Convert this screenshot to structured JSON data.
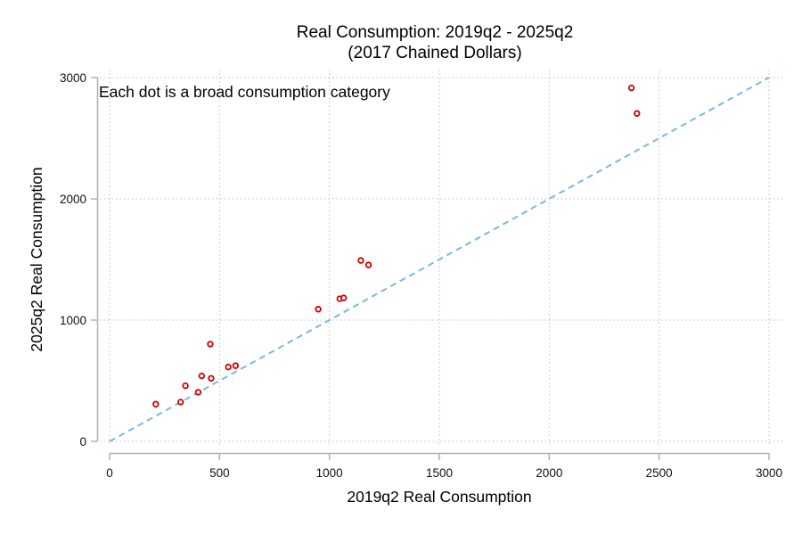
{
  "chart_data": {
    "type": "scatter",
    "title": "Real Consumption: 2019q2 - 2025q2",
    "subtitle": "(2017 Chained Dollars)",
    "xlabel": "2019q2 Real Consumption",
    "ylabel": "2025q2 Real Consumption",
    "annotation": "Each dot is a broad consumption category",
    "xlim": [
      0,
      3000
    ],
    "ylim": [
      0,
      3000
    ],
    "xticks": [
      0,
      500,
      1000,
      1500,
      2000,
      2500,
      3000
    ],
    "yticks": [
      0,
      1000,
      2000,
      3000
    ],
    "xtick_labels": [
      "0",
      "500",
      "1000",
      "1500",
      "2000",
      "2500",
      "3000"
    ],
    "ytick_labels": [
      "0",
      "1000",
      "2000",
      "3000"
    ],
    "grid": true,
    "reference_line": {
      "name": "45-degree line",
      "from": [
        0,
        0
      ],
      "to": [
        3000,
        3000
      ],
      "style": "dashed",
      "color": "#7ab8e0"
    },
    "series": [
      {
        "name": "Consumption categories",
        "marker": "hollow-circle",
        "color": "#cc0000",
        "points": [
          {
            "x": 210,
            "y": 307
          },
          {
            "x": 323,
            "y": 324
          },
          {
            "x": 345,
            "y": 459
          },
          {
            "x": 403,
            "y": 405
          },
          {
            "x": 419,
            "y": 540
          },
          {
            "x": 462,
            "y": 520
          },
          {
            "x": 458,
            "y": 802
          },
          {
            "x": 540,
            "y": 613
          },
          {
            "x": 573,
            "y": 624
          },
          {
            "x": 949,
            "y": 1090
          },
          {
            "x": 1047,
            "y": 1176
          },
          {
            "x": 1065,
            "y": 1183
          },
          {
            "x": 1143,
            "y": 1492
          },
          {
            "x": 1178,
            "y": 1455
          },
          {
            "x": 2374,
            "y": 2915
          },
          {
            "x": 2399,
            "y": 2704
          }
        ]
      }
    ]
  }
}
